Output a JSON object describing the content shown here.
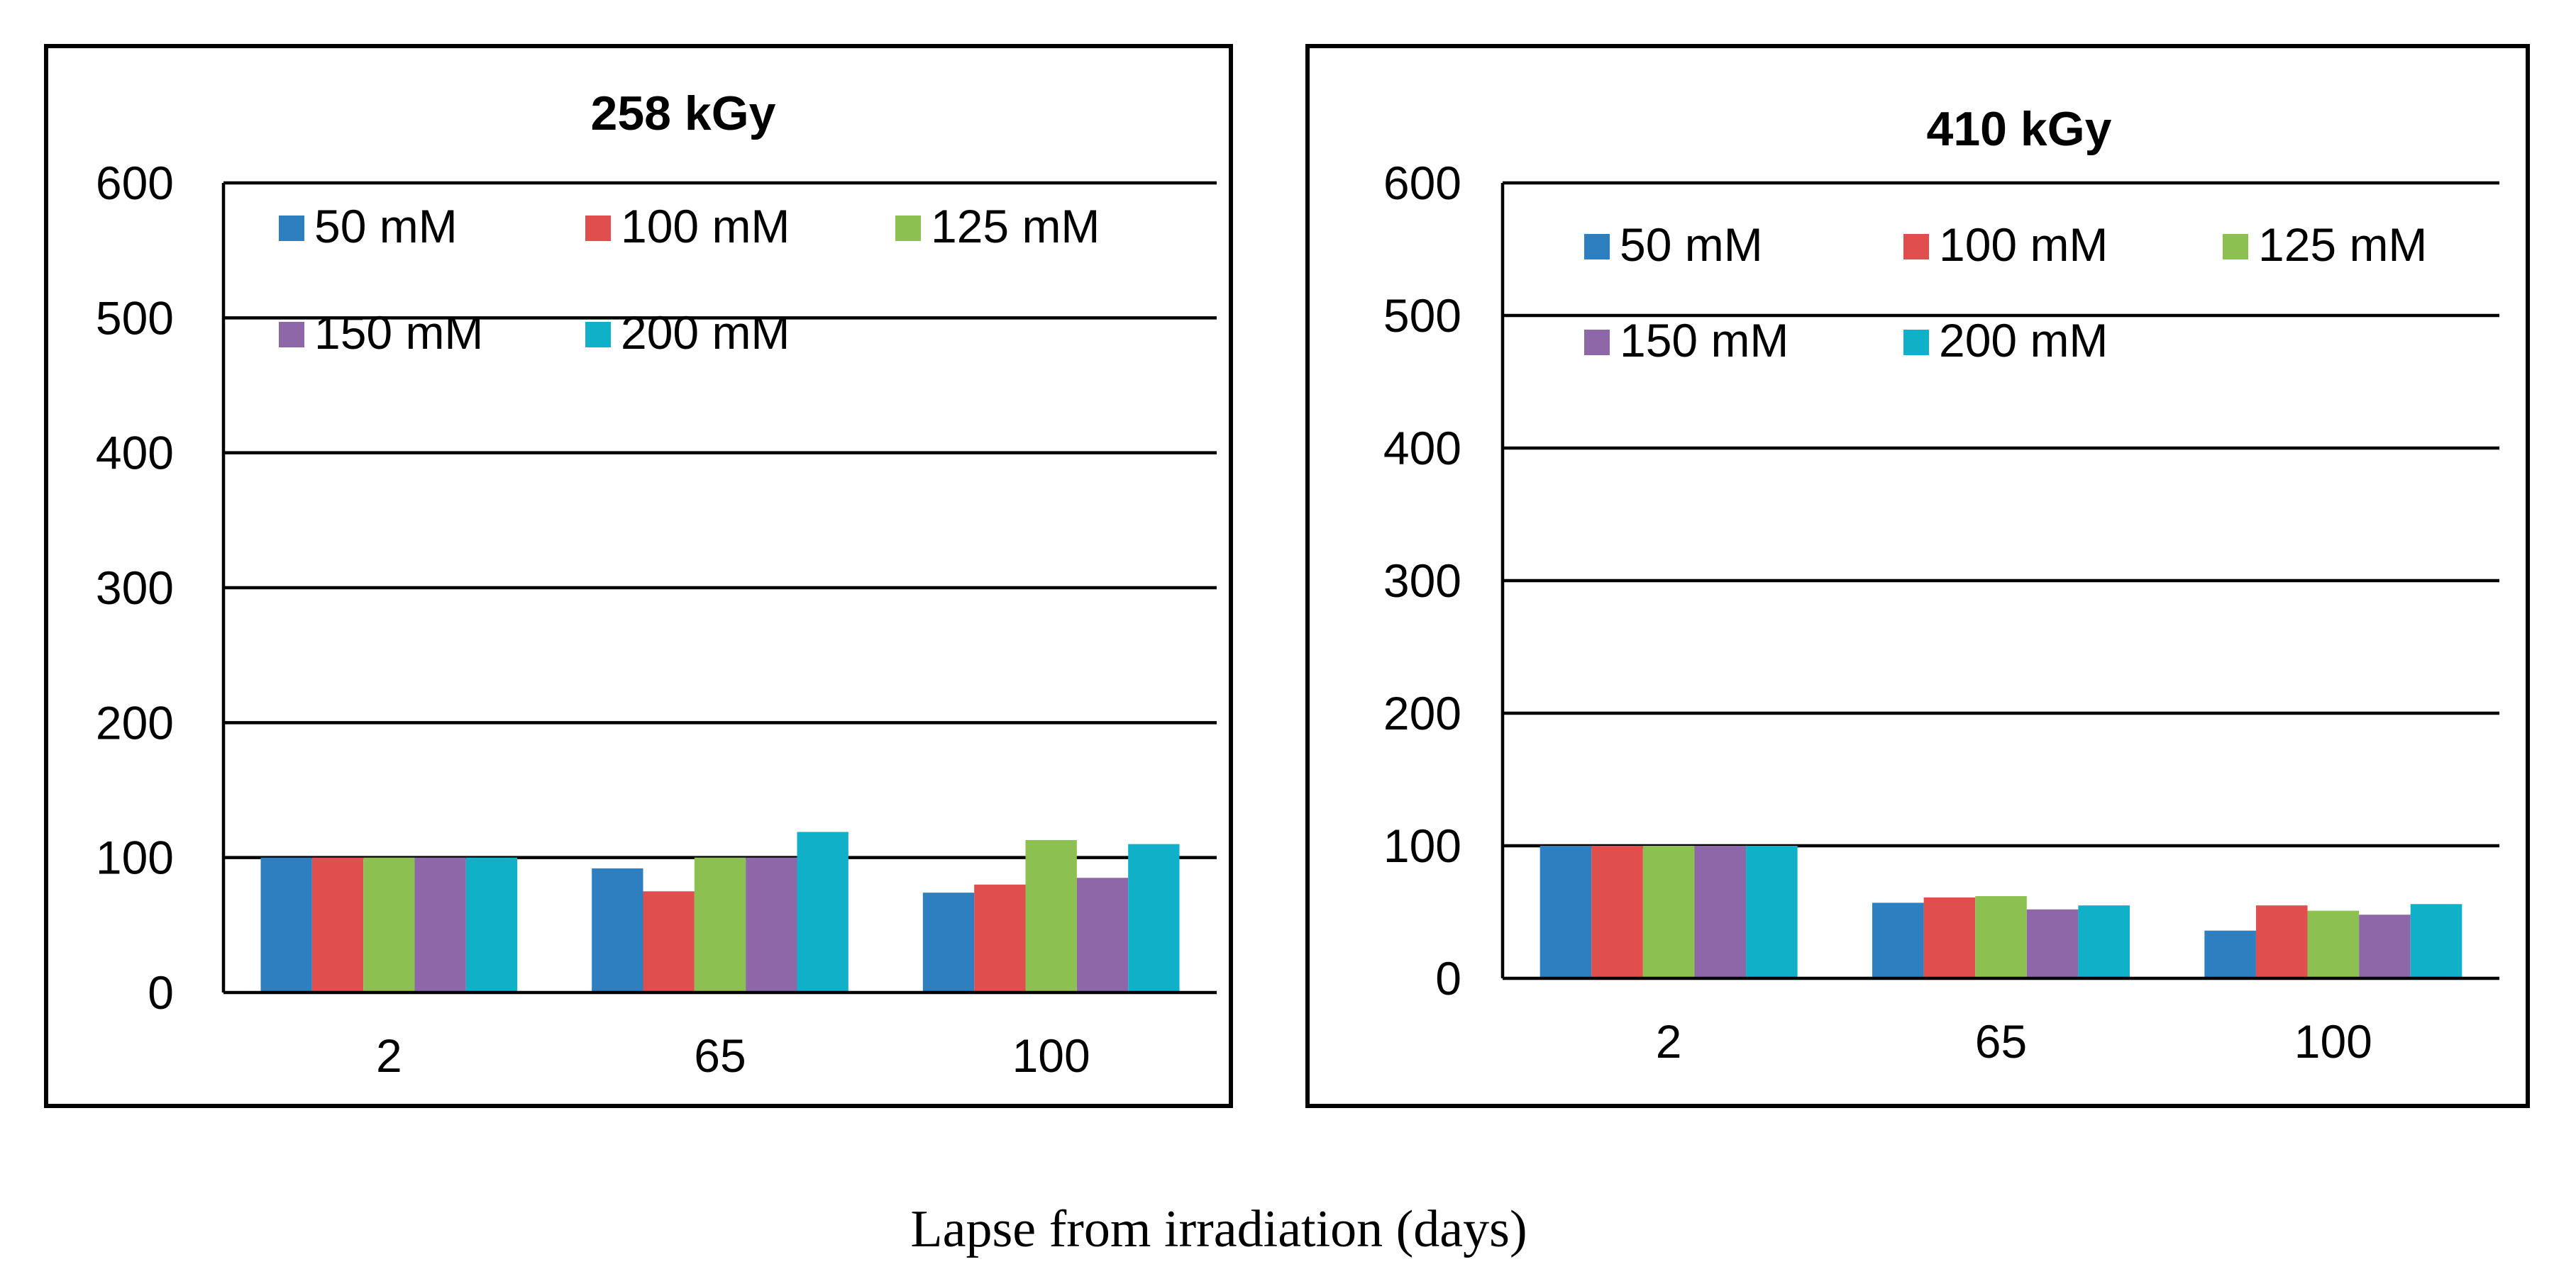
{
  "figure": {
    "xlabel": "Lapse from irradiation (days)"
  },
  "chart_data": [
    {
      "type": "bar",
      "title": "258 kGy",
      "categories": [
        "2",
        "65",
        "100"
      ],
      "ylim": [
        0,
        600
      ],
      "yticks": [
        "0",
        "100",
        "200",
        "300",
        "400",
        "500",
        "600"
      ],
      "grid": true,
      "legend_position": "top",
      "series": [
        {
          "name": "50 mM",
          "color": "#2e7fc0",
          "values": [
            100,
            92,
            74
          ]
        },
        {
          "name": "100 mM",
          "color": "#e04e4e",
          "values": [
            100,
            75,
            80
          ]
        },
        {
          "name": "125 mM",
          "color": "#8cc152",
          "values": [
            100,
            100,
            113
          ]
        },
        {
          "name": "150 mM",
          "color": "#8e67a8",
          "values": [
            100,
            100,
            85
          ]
        },
        {
          "name": "200 mM",
          "color": "#10b0c8",
          "values": [
            100,
            119,
            110
          ]
        }
      ]
    },
    {
      "type": "bar",
      "title": "410 kGy",
      "categories": [
        "2",
        "65",
        "100"
      ],
      "ylim": [
        0,
        600
      ],
      "yticks": [
        "0",
        "100",
        "200",
        "300",
        "400",
        "500",
        "600"
      ],
      "grid": true,
      "legend_position": "top",
      "series": [
        {
          "name": "50 mM",
          "color": "#2e7fc0",
          "values": [
            100,
            57,
            36
          ]
        },
        {
          "name": "100 mM",
          "color": "#e04e4e",
          "values": [
            100,
            61,
            55
          ]
        },
        {
          "name": "125 mM",
          "color": "#8cc152",
          "values": [
            100,
            62,
            51
          ]
        },
        {
          "name": "150 mM",
          "color": "#8e67a8",
          "values": [
            100,
            52,
            48
          ]
        },
        {
          "name": "200 mM",
          "color": "#10b0c8",
          "values": [
            100,
            55,
            56
          ]
        }
      ]
    }
  ]
}
